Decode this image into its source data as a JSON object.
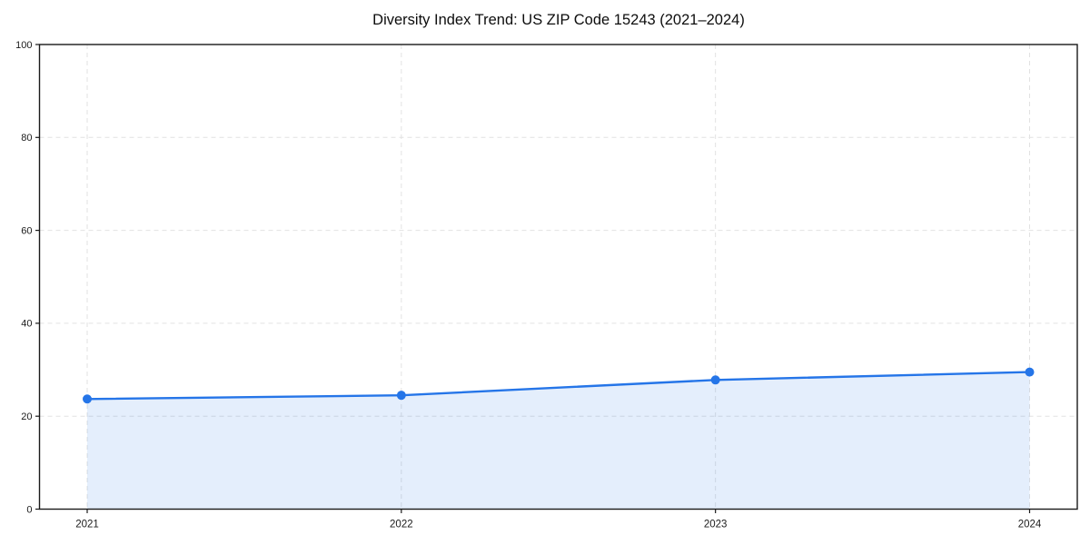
{
  "chart_data": {
    "type": "area",
    "title": "Diversity Index Trend: US ZIP Code 15243 (2021–2024)",
    "categories": [
      "2021",
      "2022",
      "2023",
      "2024"
    ],
    "values": [
      23.7,
      24.5,
      27.8,
      29.5
    ],
    "series_name": "Diversity Index",
    "xlabel": "",
    "ylabel": "",
    "ylim": [
      0,
      100
    ],
    "yticks": [
      0,
      20,
      40,
      60,
      80,
      100
    ],
    "grid": true,
    "grid_style": "dashed",
    "legend_position": "none",
    "line_color": "#2575e8",
    "fill_opacity": 0.12,
    "grid_color": "#e2e2e2",
    "axis_color": "#1a1a1a",
    "tick_label_color": "#1a1a1a",
    "background_color": "#ffffff"
  }
}
